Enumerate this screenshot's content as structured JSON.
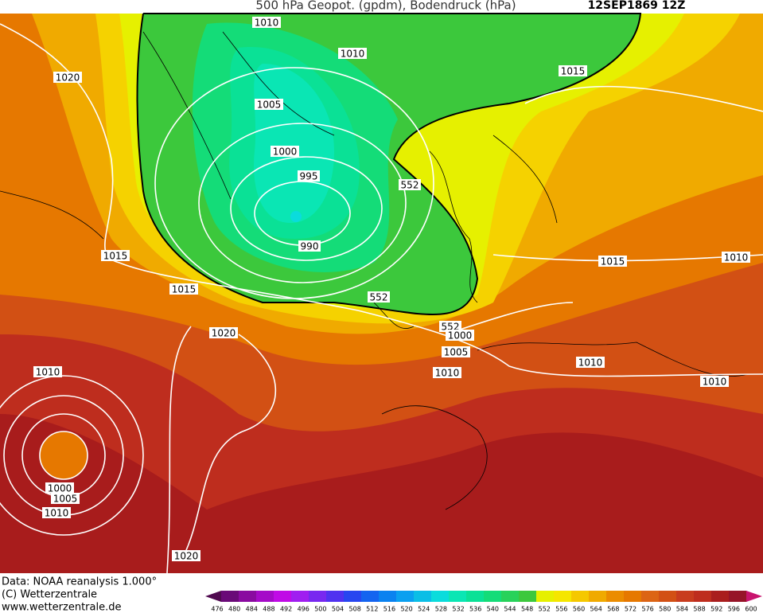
{
  "header": {
    "title": "500 hPa Geopot. (gpdm), Bodendruck (hPa)",
    "date": "12SEP1869 12Z"
  },
  "isobar_labels": [
    "1010",
    "1010",
    "1015",
    "1020",
    "1005",
    "1000",
    "995",
    "990",
    "552",
    "1015",
    "1015",
    "1010",
    "1015",
    "552",
    "552",
    "1000",
    "1020",
    "1005",
    "1010",
    "1010",
    "1010",
    "1010",
    "1000",
    "1005",
    "1010",
    "1020"
  ],
  "footer": [
    "Data: NOAA reanalysis 1.000°",
    "(C) Wetterzentrale",
    "www.wetterzentrale.de"
  ],
  "scale": {
    "labels": [
      "476",
      "480",
      "484",
      "488",
      "492",
      "496",
      "500",
      "504",
      "508",
      "512",
      "516",
      "520",
      "524",
      "528",
      "532",
      "536",
      "540",
      "544",
      "548",
      "552",
      "556",
      "560",
      "564",
      "568",
      "572",
      "576",
      "580",
      "584",
      "588",
      "592",
      "596",
      "600"
    ],
    "colors": [
      "#500a50",
      "#6a0a78",
      "#8a0aa0",
      "#a50ac8",
      "#c00ae6",
      "#a01ef0",
      "#7828f0",
      "#5032f0",
      "#2846f0",
      "#1464f0",
      "#0a82f0",
      "#0aa0f0",
      "#0abee6",
      "#0adcdc",
      "#0ae6b4",
      "#0ae196",
      "#14dc78",
      "#28d25a",
      "#3cc83c",
      "#e6f000",
      "#f5e600",
      "#f5c800",
      "#f0aa00",
      "#eb8c00",
      "#e67800",
      "#dc6414",
      "#d25014",
      "#c83c1e",
      "#be2d1e",
      "#aa1e1e",
      "#961428",
      "#c8146e"
    ]
  }
}
